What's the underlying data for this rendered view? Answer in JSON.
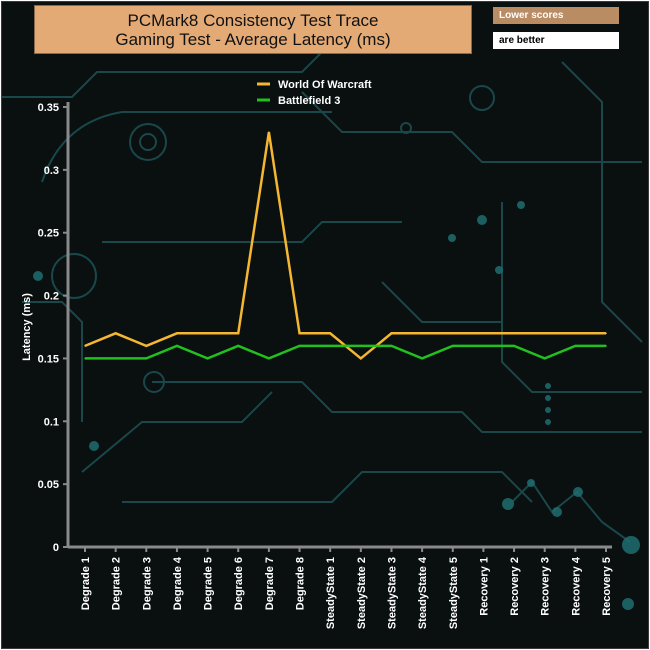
{
  "header": {
    "title_line1": "PCMark8 Consistency Test Trace",
    "title_line2": "Gaming Test -  Average Latency (ms)"
  },
  "note": {
    "line1": "Lower scores",
    "line2": "are better"
  },
  "chart_data": {
    "type": "line",
    "title": "PCMark8 Consistency Test Trace Gaming Test -  Average Latency (ms)",
    "ylabel": "Latency (ms)",
    "xlabel": "",
    "ylim": [
      0,
      0.35
    ],
    "yticks": [
      "0",
      "0.05",
      "0.1",
      "0.15",
      "0.2",
      "0.25",
      "0.3",
      "0.35"
    ],
    "ytick_values": [
      0,
      0.05,
      0.1,
      0.15,
      0.2,
      0.25,
      0.3,
      0.35
    ],
    "categories": [
      "Degrade 1",
      "Degrade 2",
      "Degrade 3",
      "Degrade 4",
      "Degrade 5",
      "Degrade 6",
      "Degrade 7",
      "Degrade 8",
      "SteadyState 1",
      "SteadyState 2",
      "SteadyState 3",
      "SteadyState 4",
      "SteadyState 5",
      "Recovery 1",
      "Recovery 2",
      "Recovery 3",
      "Recovery 4",
      "Recovery 5"
    ],
    "series": [
      {
        "name": "World Of Warcraft",
        "color": "#f5b731",
        "values": [
          0.16,
          0.17,
          0.16,
          0.17,
          0.17,
          0.17,
          0.33,
          0.17,
          0.17,
          0.15,
          0.17,
          0.17,
          0.17,
          0.17,
          0.17,
          0.17,
          0.17,
          0.17
        ]
      },
      {
        "name": "Battlefield 3",
        "color": "#22c01e",
        "values": [
          0.15,
          0.15,
          0.15,
          0.16,
          0.15,
          0.16,
          0.15,
          0.16,
          0.16,
          0.16,
          0.16,
          0.15,
          0.16,
          0.16,
          0.16,
          0.15,
          0.16,
          0.16
        ]
      }
    ],
    "grid": false,
    "legend_position": "top-center"
  }
}
